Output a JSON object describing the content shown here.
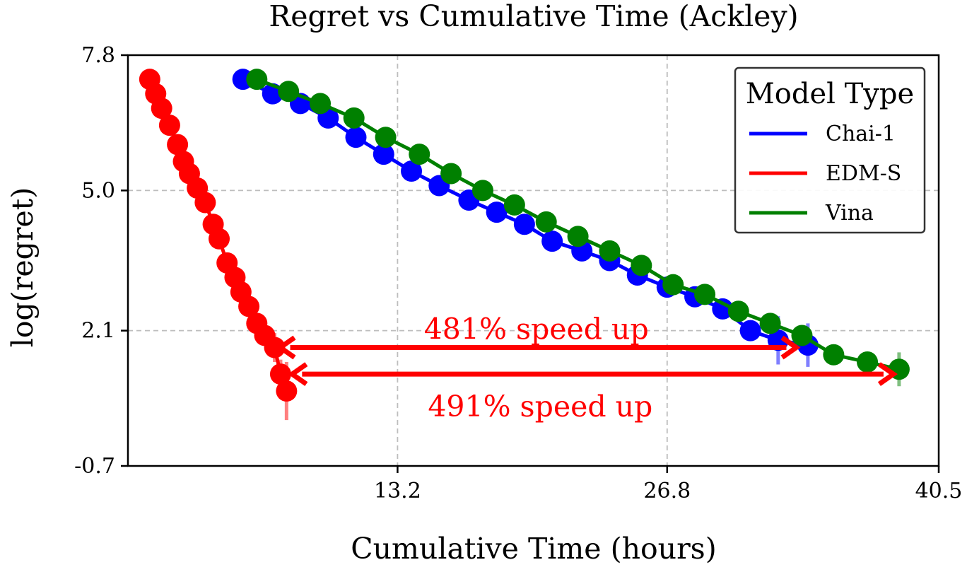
{
  "chart_data": {
    "type": "line",
    "title": "Regret vs Cumulative Time (Ackley)",
    "xlabel": "Cumulative Time (hours)",
    "ylabel": "log(regret)",
    "xlim": [
      -0.4,
      40.5
    ],
    "ylim": [
      -0.7,
      7.8
    ],
    "xticks": [
      13.2,
      26.8,
      40.5
    ],
    "xtick_labels": [
      "13.2",
      "26.8",
      "40.5"
    ],
    "yticks": [
      -0.7,
      2.1,
      5.0,
      7.8
    ],
    "ytick_labels": [
      "-0.7",
      "2.1",
      "5.0",
      "7.8"
    ],
    "grid": "dashed gray at tick positions",
    "legend": {
      "title": "Model Type",
      "placement": "top-right"
    },
    "series": [
      {
        "name": "Chai-1",
        "color": "#0000ff",
        "points": [
          [
            5.4,
            7.3,
            0.0
          ],
          [
            6.9,
            7.0,
            0.0
          ],
          [
            8.3,
            6.8,
            0.0
          ],
          [
            9.7,
            6.5,
            0.0
          ],
          [
            11.1,
            6.1,
            0.0
          ],
          [
            12.5,
            5.75,
            0.0
          ],
          [
            13.9,
            5.4,
            0.1
          ],
          [
            15.3,
            5.1,
            0.15
          ],
          [
            16.8,
            4.8,
            0.15
          ],
          [
            18.2,
            4.55,
            0.1
          ],
          [
            19.6,
            4.3,
            0.05
          ],
          [
            21.0,
            3.95,
            0.05
          ],
          [
            22.5,
            3.75,
            0.0
          ],
          [
            23.9,
            3.55,
            0.0
          ],
          [
            25.3,
            3.25,
            0.0
          ],
          [
            26.8,
            3.0,
            0.0
          ],
          [
            28.2,
            2.8,
            0.0
          ],
          [
            29.6,
            2.55,
            0.0
          ],
          [
            31.0,
            2.1,
            0.15
          ],
          [
            32.4,
            1.9,
            0.5
          ],
          [
            33.9,
            1.8,
            0.45
          ]
        ]
      },
      {
        "name": "EDM-S",
        "color": "#ff0000",
        "points": [
          [
            0.7,
            7.3,
            0.0
          ],
          [
            1.0,
            7.0,
            0.0
          ],
          [
            1.3,
            6.7,
            0.0
          ],
          [
            1.7,
            6.35,
            0.0
          ],
          [
            2.1,
            5.95,
            0.0
          ],
          [
            2.4,
            5.6,
            0.0
          ],
          [
            2.7,
            5.35,
            0.0
          ],
          [
            3.1,
            5.05,
            0.0
          ],
          [
            3.5,
            4.75,
            0.0
          ],
          [
            3.9,
            4.3,
            0.0
          ],
          [
            4.2,
            4.0,
            0.0
          ],
          [
            4.6,
            3.5,
            0.0
          ],
          [
            5.0,
            3.2,
            0.0
          ],
          [
            5.3,
            2.9,
            0.0
          ],
          [
            5.7,
            2.6,
            0.0
          ],
          [
            6.1,
            2.25,
            0.0
          ],
          [
            6.5,
            2.0,
            0.2
          ],
          [
            7.0,
            1.75,
            0.3
          ],
          [
            7.3,
            1.2,
            0.3
          ],
          [
            7.6,
            0.85,
            0.6
          ]
        ]
      },
      {
        "name": "Vina",
        "color": "#008000",
        "points": [
          [
            6.1,
            7.3,
            0.0
          ],
          [
            7.7,
            7.05,
            0.0
          ],
          [
            9.3,
            6.8,
            0.0
          ],
          [
            11.0,
            6.5,
            0.0
          ],
          [
            12.6,
            6.1,
            0.0
          ],
          [
            14.3,
            5.75,
            0.0
          ],
          [
            15.9,
            5.35,
            0.0
          ],
          [
            17.5,
            5.0,
            0.0
          ],
          [
            19.1,
            4.7,
            0.0
          ],
          [
            20.7,
            4.35,
            0.0
          ],
          [
            22.3,
            4.05,
            0.0
          ],
          [
            23.9,
            3.75,
            0.0
          ],
          [
            25.5,
            3.45,
            0.1
          ],
          [
            27.1,
            3.05,
            0.0
          ],
          [
            28.7,
            2.85,
            0.0
          ],
          [
            30.4,
            2.5,
            0.1
          ],
          [
            32.0,
            2.25,
            0.1
          ],
          [
            33.6,
            2.0,
            0.1
          ],
          [
            35.2,
            1.6,
            0.15
          ],
          [
            36.9,
            1.45,
            0.1
          ],
          [
            38.5,
            1.3,
            0.35
          ]
        ]
      }
    ],
    "annotations": [
      {
        "text": "481% speed up",
        "color": "#ff0000",
        "from": [
          7.0,
          1.75
        ],
        "to": [
          33.6,
          1.75
        ],
        "label_at": [
          20.2,
          2.1
        ]
      },
      {
        "text": "491% speed up",
        "color": "#ff0000",
        "from": [
          7.6,
          1.2
        ],
        "to": [
          38.5,
          1.2
        ],
        "label_at": [
          20.4,
          0.5
        ]
      }
    ]
  }
}
